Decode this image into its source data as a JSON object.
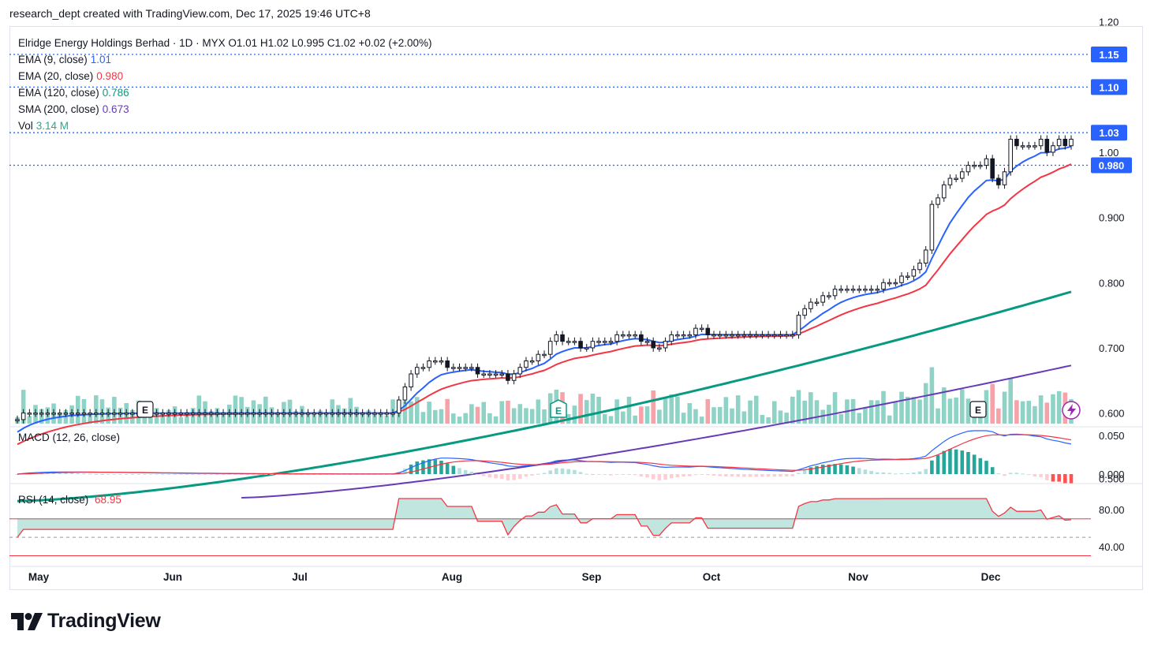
{
  "header": {
    "text": "research_dept created with TradingView.com, Dec 17, 2025 19:46 UTC+8"
  },
  "brand": {
    "name": "TradingView"
  },
  "legend": {
    "ohlc_line": "Elridge Energy Holdings Berhad · 1D · MYX  O1.01  H1.02  L0.995  C1.02  +0.02 (+2.00%)",
    "indicators": [
      {
        "label": "EMA (9, close)",
        "value": "1.01",
        "color": "#2962ff"
      },
      {
        "label": "EMA (20, close)",
        "value": "0.980",
        "color": "#f23645"
      },
      {
        "label": "EMA (120, close)",
        "value": "0.786",
        "color": "#089981"
      },
      {
        "label": "SMA (200, close)",
        "value": "0.673",
        "color": "#673ab7"
      },
      {
        "label": "Vol",
        "value": "3.14 M",
        "color": "#22ab94"
      }
    ],
    "macd_label": "MACD (12, 26, close)",
    "rsi_label": "RSI (14, close)",
    "rsi_value": "68.95"
  },
  "colors": {
    "up": "#089981",
    "down": "#f23645",
    "ema9": "#2962ff",
    "ema20": "#f23645",
    "ema120": "#089981",
    "sma200": "#673ab7",
    "candle_body": "#131722",
    "vol_up": "#8fd2c6",
    "vol_down": "#f5a3a8",
    "price_tag": "#2962ff"
  },
  "chart_data": {
    "type": "candlestick",
    "title": "Elridge Energy Holdings Berhad · 1D · MYX",
    "x_labels": [
      "May",
      "Jun",
      "Jul",
      "Aug",
      "Sep",
      "Oct",
      "Nov",
      "Dec"
    ],
    "y_ticks": [
      "1.20",
      "1.00",
      "0.900",
      "0.800",
      "0.700",
      "0.600",
      "0.500"
    ],
    "price_lines": [
      "1.15",
      "1.10",
      "1.03",
      "0.980"
    ],
    "ohlc": {
      "open": 1.01,
      "high": 1.02,
      "low": 0.995,
      "close": 1.02,
      "change": "+0.02",
      "change_pct": "+2.00%"
    },
    "close_series": [
      0.59,
      0.6,
      0.6,
      0.6,
      0.6,
      0.6,
      0.6,
      0.6,
      0.6,
      0.6,
      0.6,
      0.6,
      0.6,
      0.6,
      0.6,
      0.6,
      0.6,
      0.6,
      0.6,
      0.6,
      0.6,
      0.6,
      0.6,
      0.6,
      0.6,
      0.6,
      0.6,
      0.6,
      0.6,
      0.6,
      0.6,
      0.6,
      0.6,
      0.6,
      0.6,
      0.6,
      0.6,
      0.6,
      0.6,
      0.6,
      0.6,
      0.6,
      0.6,
      0.6,
      0.6,
      0.6,
      0.6,
      0.6,
      0.6,
      0.6,
      0.6,
      0.6,
      0.6,
      0.6,
      0.6,
      0.6,
      0.6,
      0.6,
      0.6,
      0.6,
      0.6,
      0.6,
      0.6,
      0.62,
      0.64,
      0.66,
      0.67,
      0.67,
      0.68,
      0.68,
      0.68,
      0.67,
      0.67,
      0.67,
      0.67,
      0.67,
      0.66,
      0.66,
      0.66,
      0.66,
      0.66,
      0.65,
      0.66,
      0.67,
      0.68,
      0.68,
      0.69,
      0.69,
      0.71,
      0.72,
      0.71,
      0.71,
      0.71,
      0.7,
      0.7,
      0.71,
      0.71,
      0.71,
      0.71,
      0.72,
      0.72,
      0.72,
      0.72,
      0.71,
      0.71,
      0.7,
      0.7,
      0.71,
      0.72,
      0.72,
      0.72,
      0.72,
      0.73,
      0.73,
      0.72,
      0.72,
      0.72,
      0.72,
      0.72,
      0.72,
      0.72,
      0.72,
      0.72,
      0.72,
      0.72,
      0.72,
      0.72,
      0.72,
      0.72,
      0.75,
      0.76,
      0.77,
      0.77,
      0.78,
      0.78,
      0.79,
      0.79,
      0.79,
      0.79,
      0.79,
      0.79,
      0.79,
      0.79,
      0.8,
      0.8,
      0.8,
      0.81,
      0.81,
      0.82,
      0.83,
      0.85,
      0.92,
      0.93,
      0.95,
      0.96,
      0.96,
      0.97,
      0.98,
      0.98,
      0.98,
      0.99,
      0.96,
      0.95,
      0.97,
      1.02,
      1.01,
      1.01,
      1.01,
      1.01,
      1.02,
      1.0,
      1.01,
      1.02,
      1.01,
      1.02
    ],
    "ema9": {
      "start": 0.566,
      "end": 1.01
    },
    "ema20": {
      "start": 0.548,
      "end": 0.98
    },
    "ema120": {
      "start": 0.465,
      "end": 0.786
    },
    "sma200": {
      "start": 0.47,
      "end": 0.673
    },
    "volume_last": "3.14 M",
    "macd_ticks": [
      "0.050",
      "0.000"
    ],
    "rsi_ticks": [
      "80.00",
      "40.00"
    ],
    "rsi_last": 68.95
  }
}
